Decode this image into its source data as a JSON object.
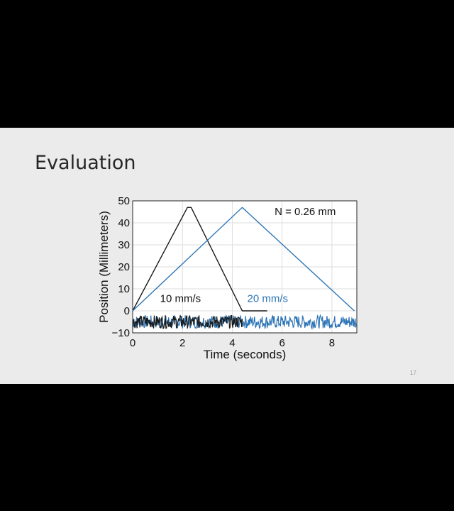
{
  "slide": {
    "title": "Evaluation",
    "page_number": "17"
  },
  "chart_data": {
    "type": "line",
    "title": "",
    "xlabel": "Time (seconds)",
    "ylabel": "Position (Millimeters)",
    "xlim": [
      0,
      9
    ],
    "ylim": [
      -10,
      50
    ],
    "xticks": [
      0,
      2,
      4,
      6,
      8
    ],
    "yticks": [
      -10,
      0,
      10,
      20,
      30,
      40,
      50
    ],
    "grid": true,
    "annotations": [
      {
        "text": "N = 0.26 mm",
        "x": 5.7,
        "y": 43.5,
        "color": "#111111"
      },
      {
        "text": "10 mm/s",
        "x": 1.1,
        "y": 4,
        "color": "#111111"
      },
      {
        "text": "20 mm/s",
        "x": 4.6,
        "y": 4,
        "color": "#2e75b6"
      }
    ],
    "series": [
      {
        "name": "10 mm/s",
        "color": "#1a1a1a",
        "x": [
          0,
          2.2,
          2.35,
          4.4,
          5.4
        ],
        "y": [
          0,
          47,
          47,
          0,
          0
        ],
        "error_x": [
          0,
          4.4
        ],
        "error_amplitude_mm": 3,
        "error_offset_mm": -5
      },
      {
        "name": "20 mm/s",
        "color": "#2e75b6",
        "x": [
          0,
          4.4,
          8.9
        ],
        "y": [
          0,
          47,
          0
        ],
        "error_x": [
          0,
          9
        ],
        "error_amplitude_mm": 3,
        "error_offset_mm": -5
      }
    ]
  }
}
